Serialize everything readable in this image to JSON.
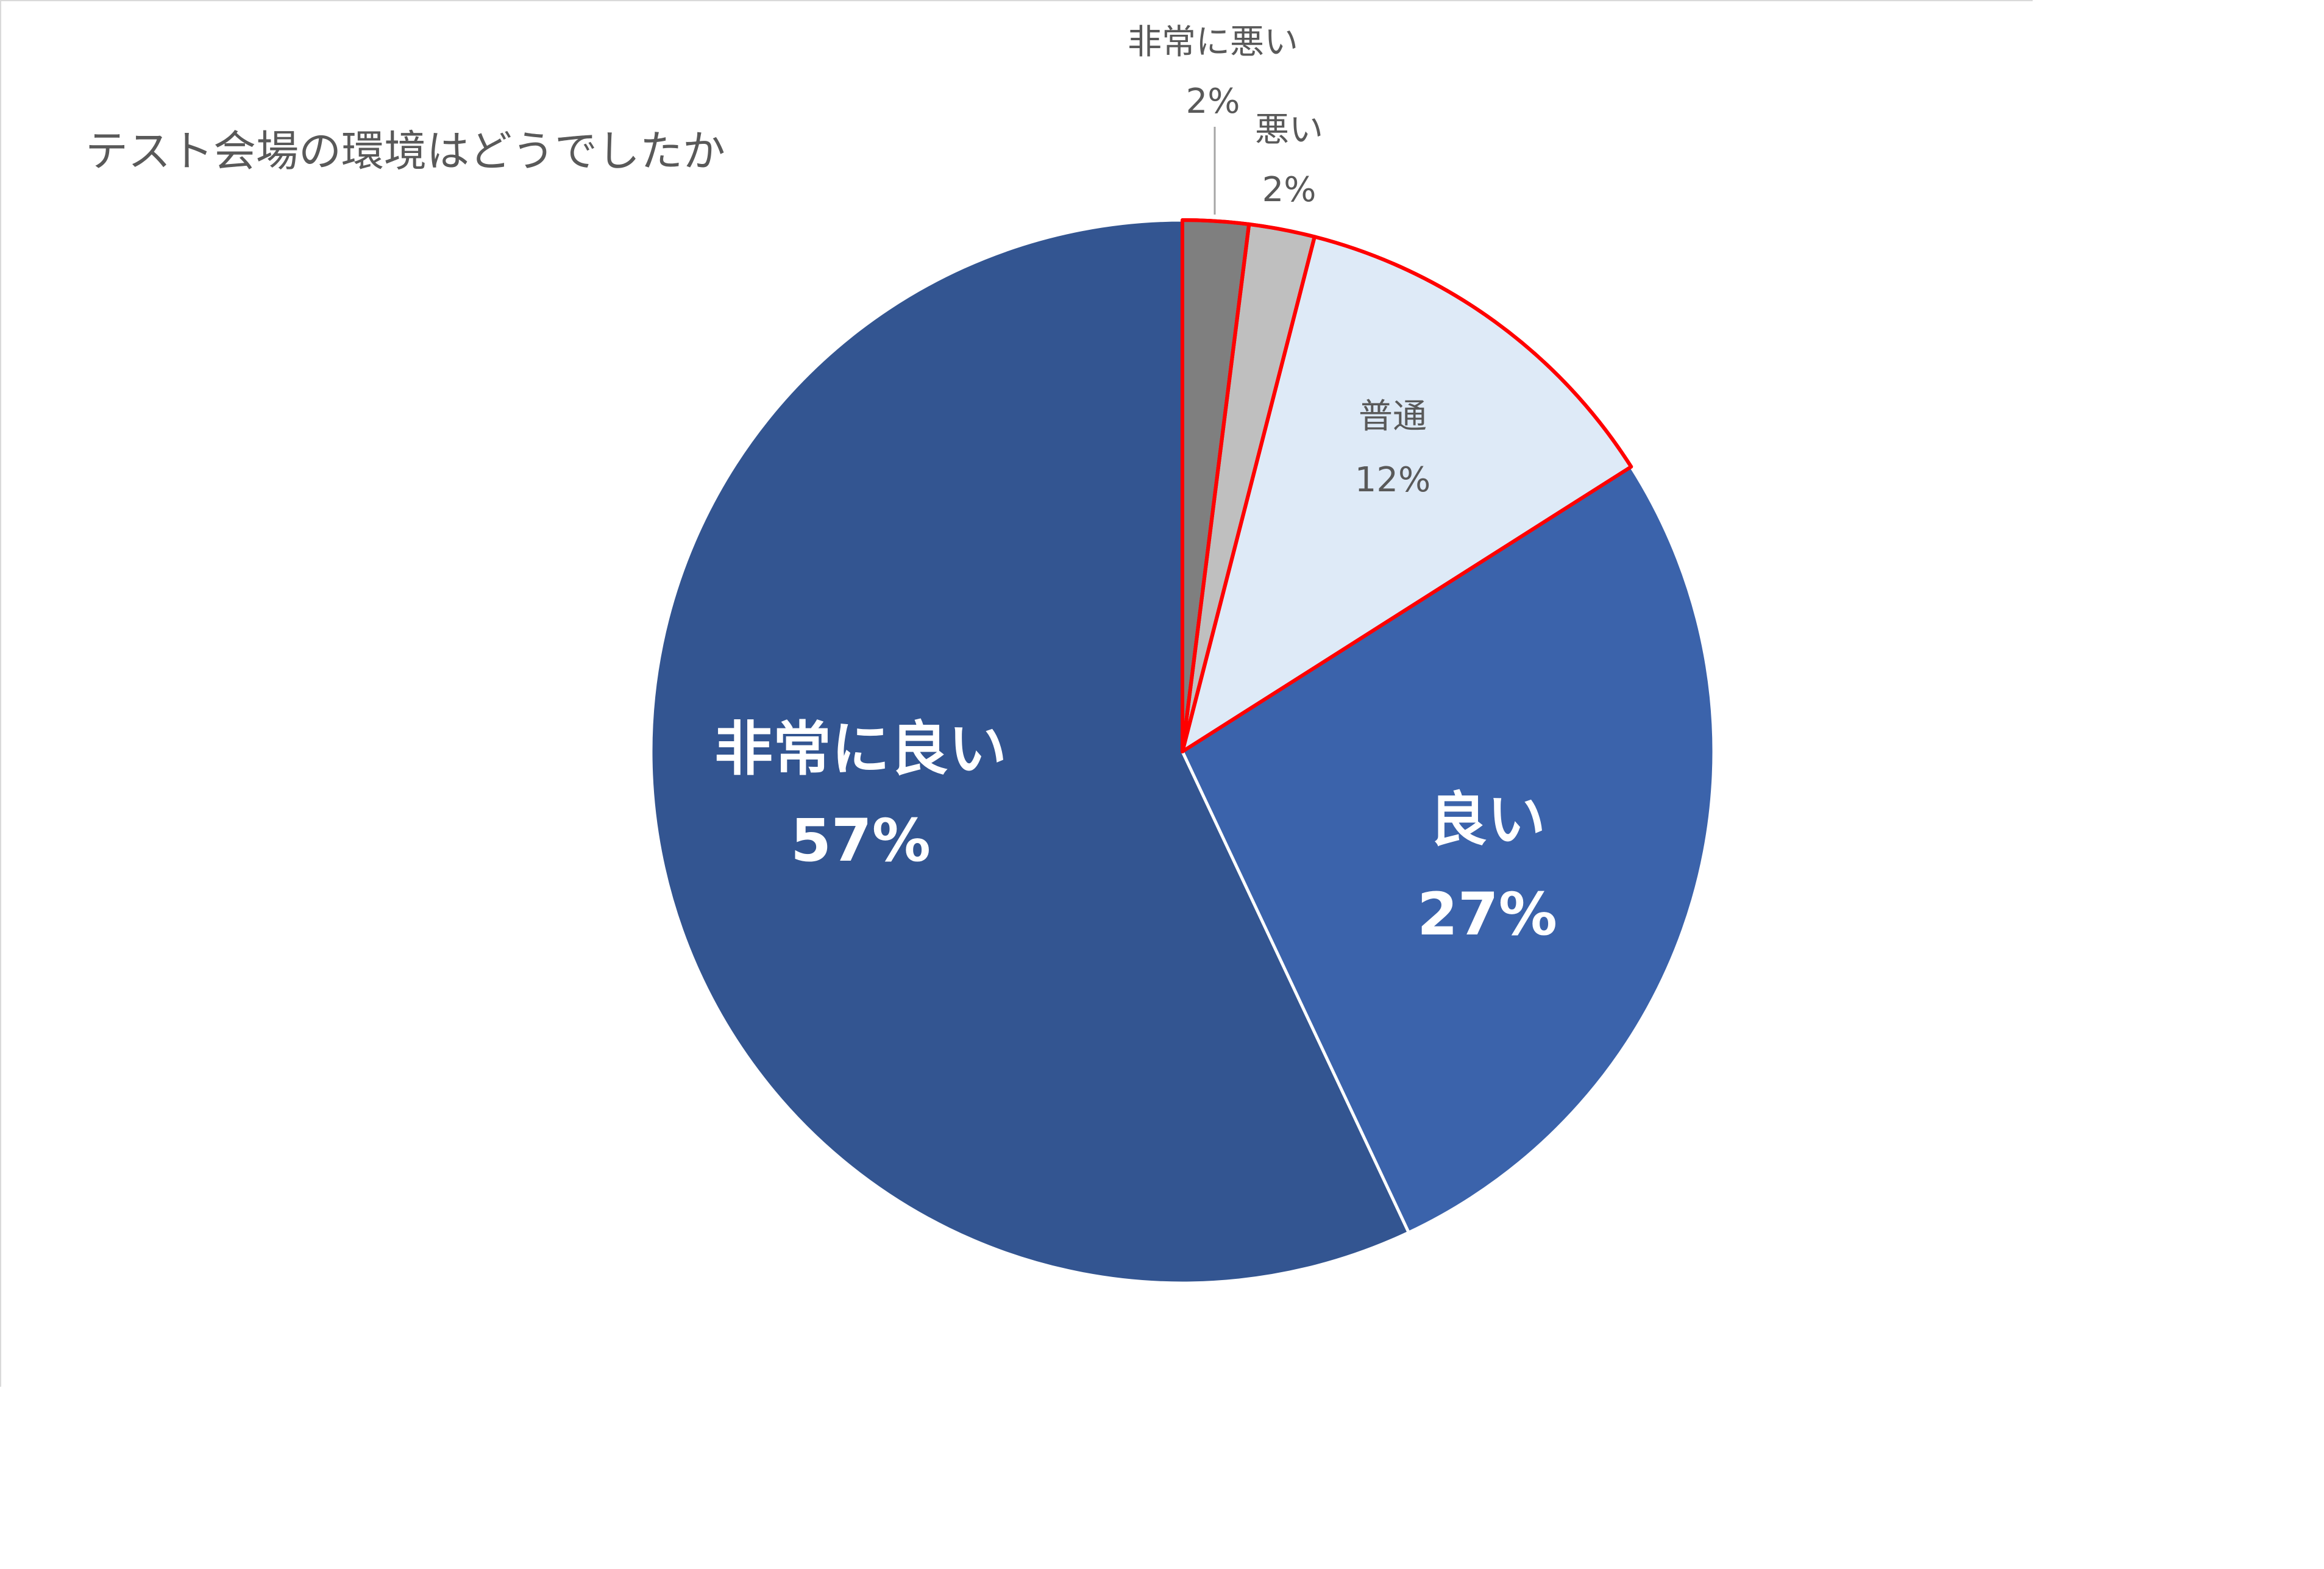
{
  "chart_data": {
    "type": "pie",
    "title": "テスト会場の環境はどうでしたか",
    "start_angle_deg": 0,
    "direction": "clockwise",
    "slices": [
      {
        "label": "非常に悪い",
        "value": 2,
        "display": "2%",
        "color": "#7f7f7f",
        "stroke": "#ff0000",
        "label_style": "outside",
        "label_color": "#595959"
      },
      {
        "label": "悪い",
        "value": 2,
        "display": "2%",
        "color": "#bfbfbf",
        "stroke": "#ff0000",
        "label_style": "outside",
        "label_color": "#595959"
      },
      {
        "label": "普通",
        "value": 12,
        "display": "12%",
        "color": "#deeaf7",
        "stroke": "#ff0000",
        "label_style": "inside-small",
        "label_color": "#595959"
      },
      {
        "label": "良い",
        "value": 27,
        "display": "27%",
        "color": "#3b63ab",
        "stroke": "#ffffff",
        "label_style": "inside-bold",
        "label_color": "#ffffff"
      },
      {
        "label": "非常に良い",
        "value": 57,
        "display": "57%",
        "color": "#335591",
        "stroke": "#ffffff",
        "label_style": "inside-bold",
        "label_color": "#ffffff"
      }
    ],
    "legend": "none",
    "grid": false
  }
}
